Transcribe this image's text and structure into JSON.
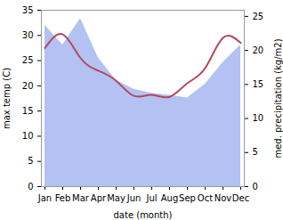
{
  "chart_data": {
    "type": "line",
    "categories": [
      "Jan",
      "Feb",
      "Mar",
      "Apr",
      "May",
      "Jun",
      "Jul",
      "Aug",
      "Sep",
      "Oct",
      "Nov",
      "Dec"
    ],
    "x_label": "date (month)",
    "y_label": "max temp (C)",
    "y2_label": "med. precipitation (kg/m2)",
    "ylim": [
      0,
      35
    ],
    "yticks": [
      0,
      5,
      10,
      15,
      20,
      25,
      30,
      35
    ],
    "y2lim": [
      0,
      25.9
    ],
    "y2ticks": [
      0,
      5,
      10,
      15,
      20,
      25
    ],
    "grid": false,
    "series": [
      {
        "name": "med. precipitation",
        "type": "area",
        "axis": "y2",
        "color": "#b3c2f2",
        "values": [
          23.7,
          20.8,
          24.7,
          18.9,
          15.6,
          14.3,
          13.7,
          13.4,
          13.0,
          15.0,
          18.2,
          20.8
        ]
      },
      {
        "name": "max temp",
        "type": "line",
        "color": "#b5475e",
        "values": [
          27.5,
          30.2,
          25.5,
          23.0,
          21.0,
          18.0,
          18.2,
          17.8,
          20.5,
          23.5,
          29.5,
          28.5
        ]
      }
    ]
  }
}
